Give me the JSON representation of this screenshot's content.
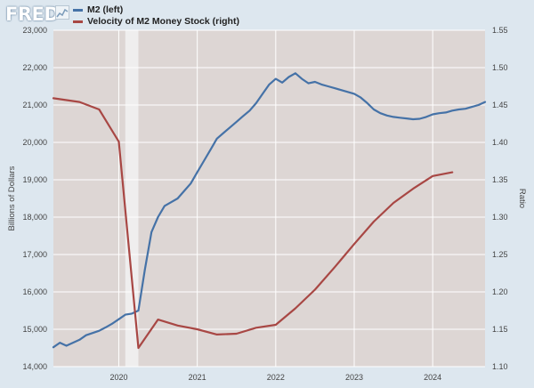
{
  "header": {
    "logo_text": "FRED",
    "legend": [
      {
        "label": "M2 (left)",
        "color": "#4572a7"
      },
      {
        "label": "Velocity of M2 Money Stock (right)",
        "color": "#a84744"
      }
    ]
  },
  "chart_data": {
    "type": "line",
    "xlim": [
      2019.167,
      2024.667
    ],
    "x_ticks": [
      {
        "value": 2020.0,
        "label": "2020"
      },
      {
        "value": 2021.0,
        "label": "2021"
      },
      {
        "value": 2022.0,
        "label": "2022"
      },
      {
        "value": 2023.0,
        "label": "2023"
      },
      {
        "value": 2024.0,
        "label": "2024"
      }
    ],
    "left_axis": {
      "label": "Billions of Dollars",
      "ylim": [
        14000,
        23000
      ],
      "ticks": [
        14000,
        15000,
        16000,
        17000,
        18000,
        19000,
        20000,
        21000,
        22000,
        23000
      ],
      "tick_labels": [
        "14,000",
        "15,000",
        "16,000",
        "17,000",
        "18,000",
        "19,000",
        "20,000",
        "21,000",
        "22,000",
        "23,000"
      ]
    },
    "right_axis": {
      "label": "Ratio",
      "ylim": [
        1.1,
        1.55
      ],
      "ticks": [
        1.1,
        1.15,
        1.2,
        1.25,
        1.3,
        1.35,
        1.4,
        1.45,
        1.5,
        1.55
      ],
      "tick_labels": [
        "1.10",
        "1.15",
        "1.20",
        "1.25",
        "1.30",
        "1.35",
        "1.40",
        "1.45",
        "1.50",
        "1.55"
      ]
    },
    "recession_band": [
      2020.083,
      2020.25
    ],
    "grid": true,
    "colors": {
      "plot_bg": "#ddd6d4",
      "grid": "#ffffff",
      "recession": "#efeeee"
    },
    "series": [
      {
        "name": "M2 (left)",
        "axis": "left",
        "color": "#4572a7",
        "x": [
          2019.167,
          2019.25,
          2019.333,
          2019.417,
          2019.5,
          2019.583,
          2019.667,
          2019.75,
          2019.833,
          2019.917,
          2020.0,
          2020.083,
          2020.167,
          2020.25,
          2020.333,
          2020.417,
          2020.5,
          2020.583,
          2020.667,
          2020.75,
          2020.833,
          2020.917,
          2021.0,
          2021.083,
          2021.167,
          2021.25,
          2021.333,
          2021.417,
          2021.5,
          2021.583,
          2021.667,
          2021.75,
          2021.833,
          2021.917,
          2022.0,
          2022.083,
          2022.167,
          2022.25,
          2022.333,
          2022.417,
          2022.5,
          2022.583,
          2022.667,
          2022.75,
          2022.833,
          2022.917,
          2023.0,
          2023.083,
          2023.167,
          2023.25,
          2023.333,
          2023.417,
          2023.5,
          2023.583,
          2023.667,
          2023.75,
          2023.833,
          2023.917,
          2024.0,
          2024.083,
          2024.167,
          2024.25,
          2024.333,
          2024.417,
          2024.5,
          2024.583,
          2024.667
        ],
        "y": [
          14520,
          14640,
          14560,
          14640,
          14720,
          14840,
          14900,
          14960,
          15050,
          15150,
          15270,
          15390,
          15420,
          15500,
          16600,
          17600,
          18000,
          18300,
          18400,
          18500,
          18700,
          18900,
          19200,
          19500,
          19800,
          20100,
          20250,
          20400,
          20550,
          20700,
          20850,
          21050,
          21300,
          21550,
          21700,
          21600,
          21750,
          21850,
          21700,
          21580,
          21620,
          21550,
          21500,
          21450,
          21400,
          21350,
          21300,
          21200,
          21050,
          20880,
          20780,
          20720,
          20680,
          20660,
          20640,
          20620,
          20630,
          20680,
          20750,
          20780,
          20800,
          20850,
          20880,
          20900,
          20950,
          21000,
          21080
        ]
      },
      {
        "name": "Velocity of M2 Money Stock (right)",
        "axis": "right",
        "color": "#a84744",
        "x": [
          2019.167,
          2019.5,
          2019.75,
          2020.0,
          2020.25,
          2020.5,
          2020.75,
          2021.0,
          2021.25,
          2021.5,
          2021.75,
          2022.0,
          2022.25,
          2022.5,
          2022.75,
          2023.0,
          2023.25,
          2023.5,
          2023.75,
          2024.0,
          2024.25
        ],
        "y": [
          1.459,
          1.454,
          1.444,
          1.401,
          1.125,
          1.163,
          1.155,
          1.15,
          1.143,
          1.144,
          1.152,
          1.156,
          1.178,
          1.203,
          1.233,
          1.264,
          1.294,
          1.319,
          1.338,
          1.355,
          1.36
        ]
      }
    ]
  }
}
